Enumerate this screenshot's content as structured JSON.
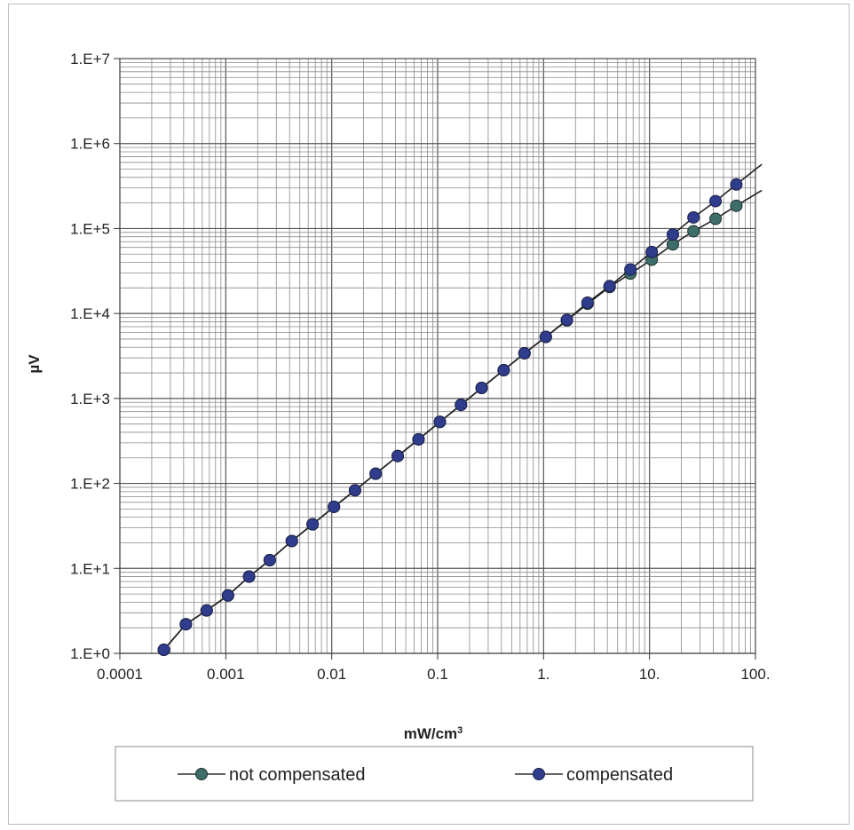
{
  "chart_data": {
    "type": "scatter",
    "title": "",
    "xlabel": "mW/cm",
    "xlabel_sup": "3",
    "ylabel": "µV",
    "xscale": "log",
    "yscale": "log",
    "xlim": [
      0.0001,
      100
    ],
    "ylim": [
      1,
      10000000
    ],
    "grid": true,
    "legend_position": "bottom",
    "x_tick_values": [
      0.0001,
      0.001,
      0.01,
      0.1,
      1,
      10,
      100
    ],
    "x_tick_labels": [
      "0.0001",
      "0.001",
      "0.01",
      "0.1",
      "1.",
      "10.",
      "100."
    ],
    "y_tick_values": [
      1,
      10,
      100,
      1000,
      10000,
      100000,
      1000000,
      10000000
    ],
    "y_tick_labels": [
      "1.E+0",
      "1.E+1",
      "1.E+2",
      "1.E+3",
      "1.E+4",
      "1.E+5",
      "1.E+6",
      "1.E+7"
    ],
    "series": [
      {
        "name": "not compensated",
        "color": "#3f6e6a",
        "x": [
          0.00026,
          0.00042,
          0.00066,
          0.00105,
          0.00166,
          0.0026,
          0.0042,
          0.0066,
          0.0105,
          0.0166,
          0.026,
          0.042,
          0.066,
          0.105,
          0.166,
          0.26,
          0.42,
          0.66,
          1.05,
          1.66,
          2.6,
          4.2,
          6.6,
          10.5,
          16.6,
          26,
          42,
          66
        ],
        "y": [
          1.1,
          2.2,
          3.2,
          4.8,
          8,
          12.5,
          21,
          33,
          53,
          83,
          130,
          210,
          330,
          530,
          840,
          1330,
          2150,
          3400,
          5300,
          8300,
          13000,
          20500,
          29500,
          43000,
          65000,
          93000,
          130000,
          185000
        ]
      },
      {
        "name": "compensated",
        "color": "#303c8c",
        "x": [
          0.00026,
          0.00042,
          0.00066,
          0.00105,
          0.00166,
          0.0026,
          0.0042,
          0.0066,
          0.0105,
          0.0166,
          0.026,
          0.042,
          0.066,
          0.105,
          0.166,
          0.26,
          0.42,
          0.66,
          1.05,
          1.66,
          2.6,
          4.2,
          6.6,
          10.5,
          16.6,
          26,
          42,
          66
        ],
        "y": [
          1.1,
          2.2,
          3.2,
          4.8,
          8,
          12.5,
          21,
          33,
          53,
          83,
          130,
          210,
          330,
          530,
          840,
          1330,
          2150,
          3400,
          5300,
          8400,
          13400,
          21000,
          33000,
          53000,
          85000,
          135000,
          210000,
          330000
        ]
      }
    ]
  }
}
